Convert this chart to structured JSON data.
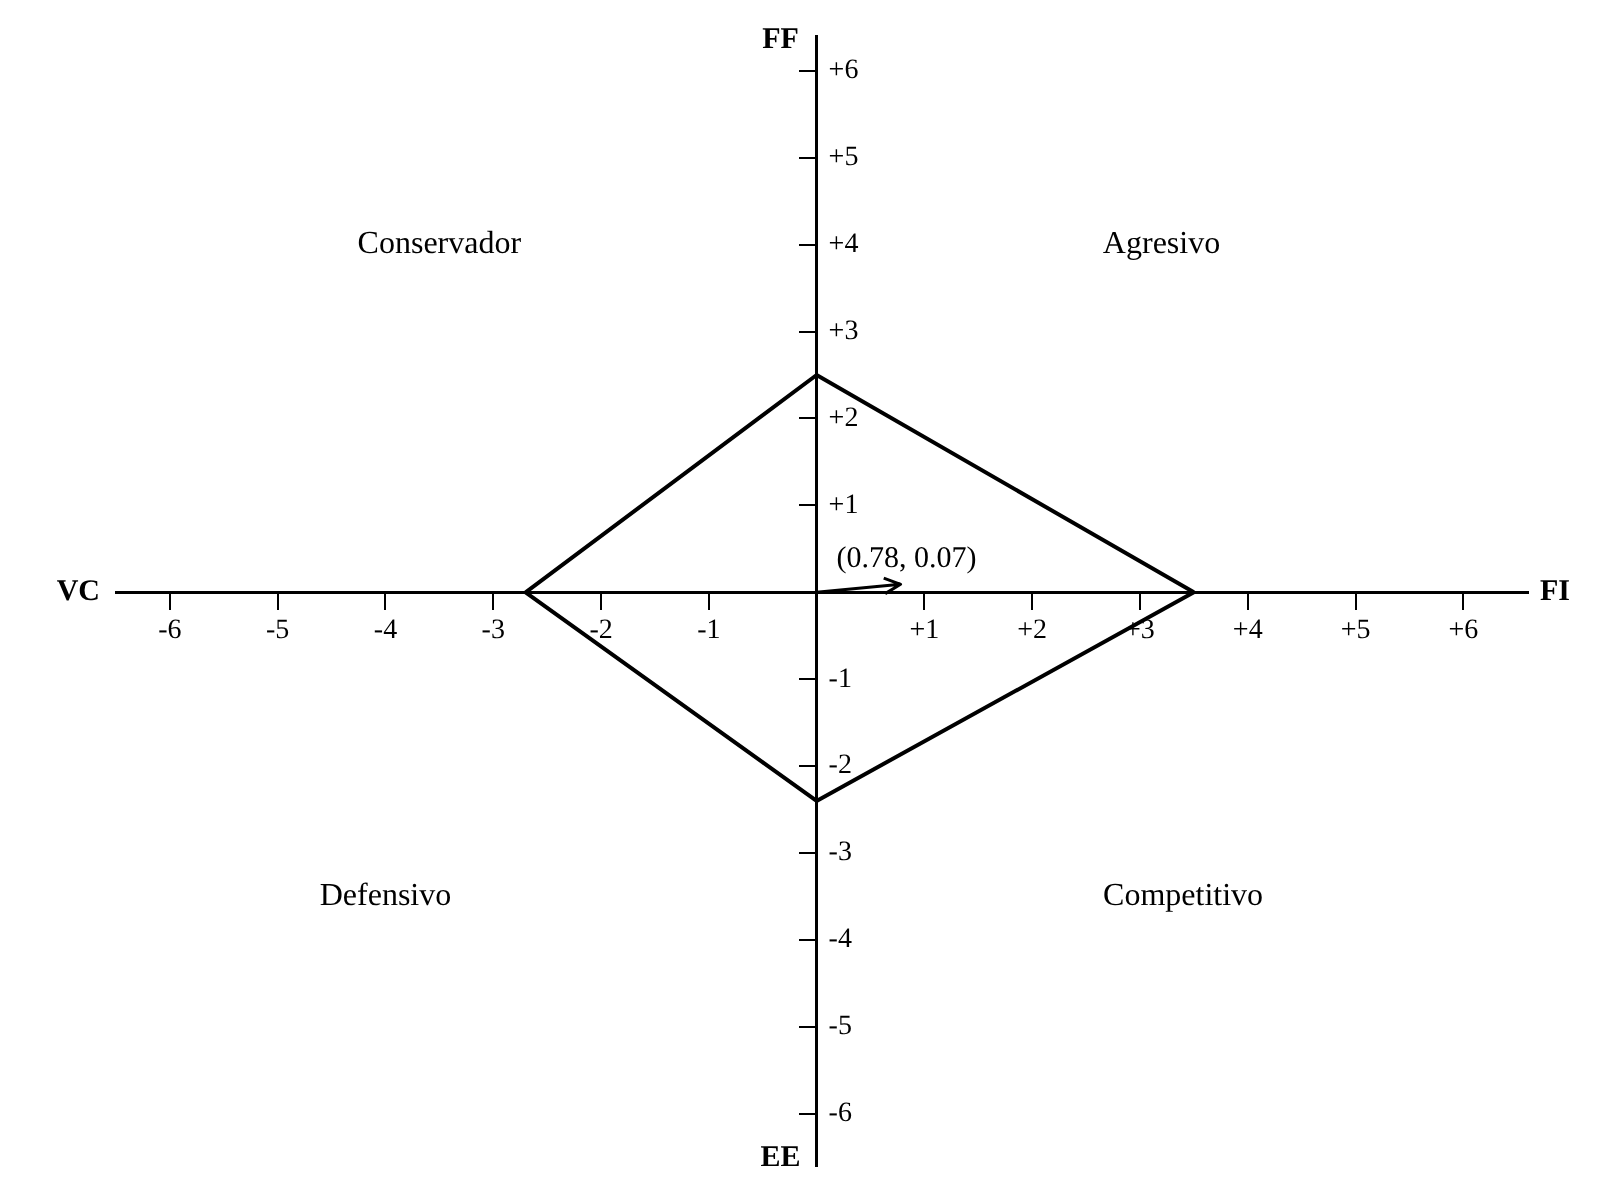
{
  "chart_data": {
    "type": "line",
    "xlabel": "FI",
    "ylabel": "FF",
    "xlim": [
      -6.5,
      6.6
    ],
    "ylim": [
      -6.6,
      6.4
    ],
    "xticks": [
      {
        "value": -6,
        "label": "-6"
      },
      {
        "value": -5,
        "label": "-5"
      },
      {
        "value": -4,
        "label": "-4"
      },
      {
        "value": -3,
        "label": "-3"
      },
      {
        "value": -2,
        "label": "-2"
      },
      {
        "value": -1,
        "label": "-1"
      },
      {
        "value": 1,
        "label": "+1"
      },
      {
        "value": 2,
        "label": "+2"
      },
      {
        "value": 3,
        "label": "+3"
      },
      {
        "value": 4,
        "label": "+4"
      },
      {
        "value": 5,
        "label": "+5"
      },
      {
        "value": 6,
        "label": "+6"
      }
    ],
    "yticks": [
      {
        "value": -6,
        "label": "-6"
      },
      {
        "value": -5,
        "label": "-5"
      },
      {
        "value": -4,
        "label": "-4"
      },
      {
        "value": -3,
        "label": "-3"
      },
      {
        "value": -2,
        "label": "-2"
      },
      {
        "value": -1,
        "label": "-1"
      },
      {
        "value": 1,
        "label": "+1"
      },
      {
        "value": 2,
        "label": "+2"
      },
      {
        "value": 3,
        "label": "+3"
      },
      {
        "value": 4,
        "label": "+4"
      },
      {
        "value": 5,
        "label": "+5"
      },
      {
        "value": 6,
        "label": "+6"
      }
    ],
    "series": [
      {
        "color": "#000000",
        "x": [
          -2.7,
          0,
          3.5
        ],
        "values": [
          0,
          2.5,
          0
        ]
      },
      {
        "color": "#000000",
        "x": [
          -2.7,
          0,
          3.5
        ],
        "values": [
          0,
          -2.4,
          0
        ]
      }
    ],
    "annotations": [
      "VC",
      "EE",
      "Conservador",
      "Agresivo",
      "Defensivo",
      "Competitivo",
      "(0.78, 0.07)"
    ],
    "marker": "none",
    "line_style": "solid",
    "grid": false,
    "legend": false
  }
}
